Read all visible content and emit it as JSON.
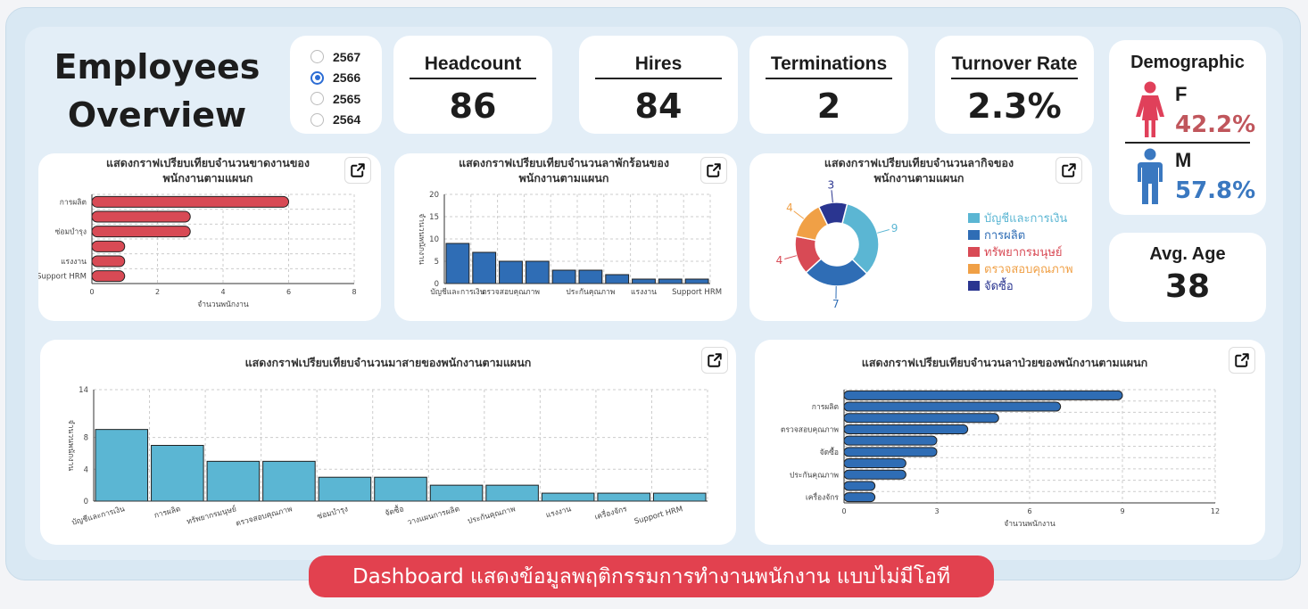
{
  "header": {
    "title_line1": "Employees",
    "title_line2": "Overview"
  },
  "years": {
    "options": [
      "2567",
      "2566",
      "2565",
      "2564"
    ],
    "selected": "2566"
  },
  "kpis": {
    "headcount": {
      "label": "Headcount",
      "value": "86"
    },
    "hires": {
      "label": "Hires",
      "value": "84"
    },
    "terminations": {
      "label": "Terminations",
      "value": "2"
    },
    "turnover": {
      "label": "Turnover Rate",
      "value": "2.3%"
    }
  },
  "demographic": {
    "title": "Demographic",
    "female": {
      "label": "F",
      "value": "42.2%",
      "color": "#c0565c"
    },
    "male": {
      "label": "M",
      "value": "57.8%",
      "color": "#3a78c0"
    }
  },
  "avg_age": {
    "label": "Avg. Age",
    "value": "38"
  },
  "icons": {
    "expand": "open-in-new-icon",
    "female": "female-person-icon",
    "male": "male-person-icon"
  },
  "footer": {
    "text": "Dashboard แสดงข้อมูลพฤติกรรมการทำงานพนักงาน แบบไม่มีโอที"
  },
  "chart_data": [
    {
      "id": "absence",
      "type": "bar",
      "orientation": "horizontal",
      "title": "แสดงกราฟเปรียบเทียบจำนวนขาดงานของพนักงานตามแผนก",
      "title_lines": [
        "แสดงกราฟเปรียบเทียบจำนวนขาดงานของ",
        "พนักงานตามแผนก"
      ],
      "categories": [
        "การผลิต",
        "",
        "ซ่อมบำรุง",
        "",
        "แรงงาน",
        "Support HRM"
      ],
      "values": [
        6,
        3,
        3,
        1,
        1,
        1
      ],
      "xlabel": "จำนวนพนักงาน",
      "xlim": [
        0,
        8
      ],
      "xticks": [
        0,
        2,
        4,
        6,
        8
      ],
      "color": "#d84a55",
      "grid": true
    },
    {
      "id": "vacation",
      "type": "bar",
      "title": "แสดงกราฟเปรียบเทียบจำนวนลาพักร้อนของพนักงานตามแผนก",
      "title_lines": [
        "แสดงกราฟเปรียบเทียบจำนวนลาพักร้อนของ",
        "พนักงานตามแผนก"
      ],
      "categories": [
        "บัญชีและการเงิน",
        "",
        "ตรวจสอบคุณภาพ",
        "",
        "",
        "ประกันคุณภาพ",
        "",
        "แรงงาน",
        "",
        "Support HRM"
      ],
      "values": [
        9,
        7,
        5,
        5,
        3,
        3,
        2,
        1,
        1,
        1
      ],
      "ylabel": "จำนวนพนักงาน",
      "ylim": [
        0,
        20
      ],
      "yticks": [
        0,
        5,
        10,
        15,
        20
      ],
      "color": "#2f6db5",
      "grid": true
    },
    {
      "id": "business_leave",
      "type": "pie",
      "donut": true,
      "title": "แสดงกราฟเปรียบเทียบจำนวนลากิจของพนักงานตามแผนก",
      "title_lines": [
        "แสดงกราฟเปรียบเทียบจำนวนลากิจของ",
        "พนักงานตามแผนก"
      ],
      "labels": [
        "บัญชีและการเงิน",
        "การผลิต",
        "ทรัพยากรมนุษย์",
        "ตรวจสอบคุณภาพ",
        "จัดซื้อ"
      ],
      "values": [
        9,
        7,
        4,
        4,
        3
      ],
      "colors": [
        "#5bb6d3",
        "#2f6db5",
        "#d84a55",
        "#f0a046",
        "#2a3590"
      ],
      "legend": "right"
    },
    {
      "id": "late",
      "type": "bar",
      "title": "แสดงกราฟเปรียบเทียบจำนวนมาสายของพนักงานตามแผนก",
      "categories": [
        "บัญชีและการเงิน",
        "การผลิต",
        "ทรัพยากรมนุษย์",
        "ตรวจสอบคุณภาพ",
        "ซ่อมบำรุง",
        "จัดซื้อ",
        "วางแผนการผลิต",
        "ประกันคุณภาพ",
        "แรงงาน",
        "เครื่องจักร",
        "Support HRM"
      ],
      "values": [
        9,
        7,
        5,
        5,
        3,
        3,
        2,
        2,
        1,
        1,
        1
      ],
      "ylabel": "จำนวนพนักงาน",
      "ylim": [
        0,
        14
      ],
      "yticks": [
        0,
        4,
        8,
        14
      ],
      "color": "#5bb6d3",
      "grid": true
    },
    {
      "id": "sick",
      "type": "bar",
      "orientation": "horizontal",
      "title": "แสดงกราฟเปรียบเทียบจำนวนลาป่วยของพนักงานตามแผนก",
      "categories": [
        "",
        "การผลิต",
        "",
        "ตรวจสอบคุณภาพ",
        "",
        "จัดซื้อ",
        "",
        "ประกันคุณภาพ",
        "",
        "เครื่องจักร"
      ],
      "values": [
        9,
        7,
        5,
        4,
        3,
        3,
        2,
        2,
        1,
        1
      ],
      "xlabel": "จำนวนพนักงาน",
      "xlim": [
        0,
        12
      ],
      "xticks": [
        0,
        3,
        6,
        9,
        12
      ],
      "color": "#2f6db5",
      "grid": true
    }
  ]
}
